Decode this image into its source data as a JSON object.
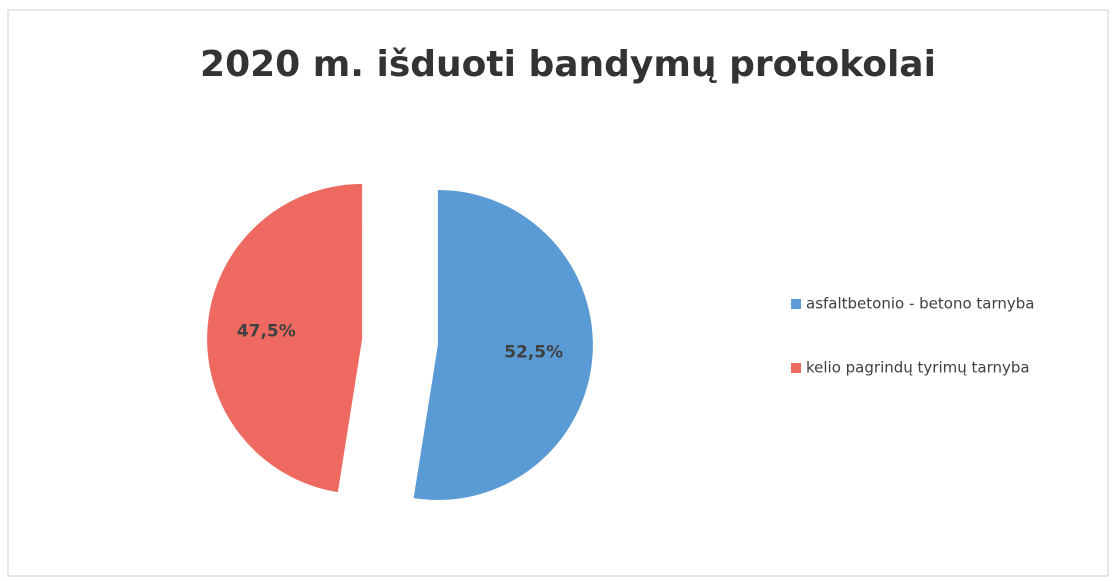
{
  "chart_data": {
    "type": "pie",
    "title": "2020 m. išduoti bandymų protokolai",
    "categories": [
      "asfaltbetonio - betono tarnyba",
      "kelio pagrindų tyrimų tarnyba"
    ],
    "values": [
      52.5,
      47.5
    ],
    "value_labels": [
      "52,5%",
      "47,5%"
    ],
    "colors": [
      "#5b9bd5",
      "#ee6a60"
    ],
    "legend": "right"
  }
}
